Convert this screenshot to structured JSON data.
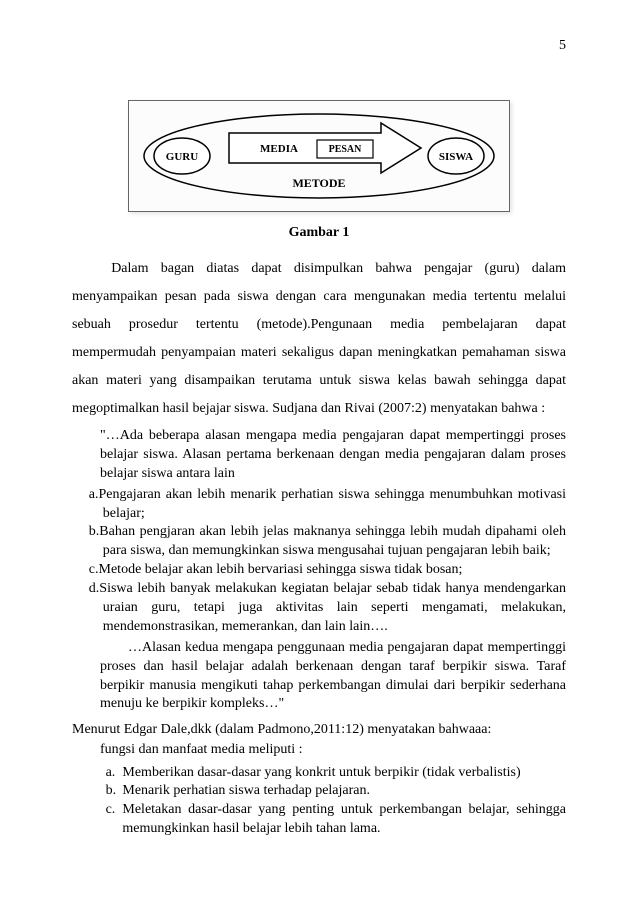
{
  "pageNumber": "5",
  "diagram": {
    "nodes": {
      "guru": "GURU",
      "media": "MEDIA",
      "pesan": "PESAN",
      "metode": "METODE",
      "siswa": "SISWA"
    },
    "stroke": "#000000",
    "fill": "#ffffff",
    "fontFamily": "Times New Roman",
    "fontSizeNode": 11
  },
  "caption": "Gambar 1",
  "para1": "Dalam bagan diatas dapat disimpulkan bahwa pengajar (guru) dalam menyampaikan pesan pada siswa dengan cara mengunakan media tertentu melalui sebuah prosedur tertentu (metode).Pengunaan media pembelajaran dapat mempermudah penyampaian materi sekaligus dapan meningkatkan pemahaman siswa akan materi yang disampaikan terutama untuk siswa kelas bawah sehingga dapat megoptimalkan hasil bejajar siswa. Sudjana dan Rivai (2007:2) menyatakan bahwa :",
  "quoteIntro": "\"…Ada beberapa alasan mengapa media pengajaran dapat mempertinggi proses belajar siswa. Alasan pertama berkenaan dengan media pengajaran dalam proses belajar siswa antara lain",
  "quoteItems": [
    {
      "m": "a.",
      "t": "Pengajaran akan lebih menarik perhatian siswa sehingga menumbuhkan motivasi belajar;"
    },
    {
      "m": "b.",
      "t": "Bahan pengjaran akan lebih jelas maknanya sehingga lebih mudah dipahami oleh para siswa, dan memungkinkan siswa mengusahai tujuan pengajaran lebih baik;"
    },
    {
      "m": "c.",
      "t": "Metode belajar akan lebih bervariasi sehingga siswa tidak bosan;"
    },
    {
      "m": "d.",
      "t": "Siswa lebih banyak melakukan kegiatan belajar sebab tidak hanya mendengarkan uraian guru, tetapi juga aktivitas lain seperti mengamati, melakukan, mendemonstrasikan, memerankan, dan lain lain…."
    }
  ],
  "quoteTail": "…Alasan kedua mengapa penggunaan media pengajaran dapat mempertinggi proses dan hasil belajar adalah berkenaan dengan taraf berpikir siswa. Taraf berpikir manusia mengikuti tahap perkembangan dimulai dari berpikir sederhana menuju ke berpikir kompleks…\"",
  "refLine1": "Menurut Edgar Dale,dkk (dalam Padmono,2011:12) menyatakan bahwaaa:",
  "refLine2": "fungsi dan manfaat media meliputi :",
  "list2": [
    {
      "m": "a.",
      "t": "Memberikan dasar-dasar yang konkrit untuk berpikir (tidak verbalistis)"
    },
    {
      "m": "b.",
      "t": "Menarik perhatian siswa terhadap pelajaran."
    },
    {
      "m": "c.",
      "t": "Meletakan dasar-dasar yang penting untuk perkembangan belajar, sehingga memungkinkan hasil belajar lebih tahan lama."
    }
  ]
}
